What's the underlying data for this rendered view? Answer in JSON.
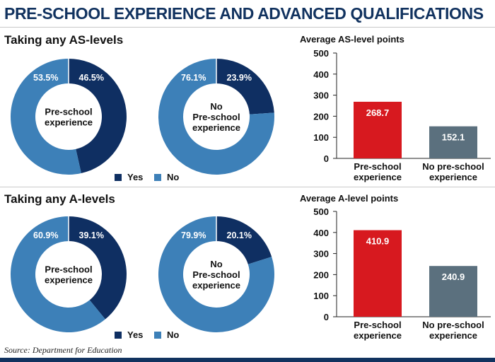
{
  "title": "PRE-SCHOOL EXPERIENCE AND ADVANCED QUALIFICATIONS",
  "source": "Source: Department for Education",
  "colors": {
    "yes": "#0f2f62",
    "no": "#3d80b8",
    "pre_school_bar": "#d7191f",
    "no_pre_school_bar": "#5b707e",
    "title": "#11325f"
  },
  "legend": {
    "yes": "Yes",
    "no": "No"
  },
  "sections": [
    {
      "heading": "Taking any AS-levels"
    },
    {
      "heading": "Taking any A-levels"
    }
  ],
  "chart_data": [
    {
      "type": "pie",
      "variant": "donut",
      "section": "Taking any AS-levels",
      "center_label": [
        "Pre-school",
        "experience"
      ],
      "series": [
        {
          "name": "Yes",
          "value": 46.5,
          "label": "46.5%"
        },
        {
          "name": "No",
          "value": 53.5,
          "label": "53.5%"
        }
      ]
    },
    {
      "type": "pie",
      "variant": "donut",
      "section": "Taking any AS-levels",
      "center_label": [
        "No",
        "Pre-school",
        "experience"
      ],
      "series": [
        {
          "name": "Yes",
          "value": 23.9,
          "label": "23.9%"
        },
        {
          "name": "No",
          "value": 76.1,
          "label": "76.1%"
        }
      ]
    },
    {
      "type": "bar",
      "title": "Average AS-level points",
      "categories": [
        [
          "Pre-school",
          "experience"
        ],
        [
          "No pre-school",
          "experience"
        ]
      ],
      "values": [
        268.7,
        152.1
      ],
      "value_labels": [
        "268.7",
        "152.1"
      ],
      "ylim": [
        0,
        500
      ],
      "yticks": [
        0,
        100,
        200,
        300,
        400,
        500
      ],
      "grid": false
    },
    {
      "type": "pie",
      "variant": "donut",
      "section": "Taking any A-levels",
      "center_label": [
        "Pre-school",
        "experience"
      ],
      "series": [
        {
          "name": "Yes",
          "value": 39.1,
          "label": "39.1%"
        },
        {
          "name": "No",
          "value": 60.9,
          "label": "60.9%"
        }
      ]
    },
    {
      "type": "pie",
      "variant": "donut",
      "section": "Taking any A-levels",
      "center_label": [
        "No",
        "Pre-school",
        "experience"
      ],
      "series": [
        {
          "name": "Yes",
          "value": 20.1,
          "label": "20.1%"
        },
        {
          "name": "No",
          "value": 79.9,
          "label": "79.9%"
        }
      ]
    },
    {
      "type": "bar",
      "title": "Average A-level points",
      "categories": [
        [
          "Pre-school",
          "experience"
        ],
        [
          "No pre-school",
          "experience"
        ]
      ],
      "values": [
        410.9,
        240.9
      ],
      "value_labels": [
        "410.9",
        "240.9"
      ],
      "ylim": [
        0,
        500
      ],
      "yticks": [
        0,
        100,
        200,
        300,
        400,
        500
      ],
      "grid": false
    }
  ]
}
